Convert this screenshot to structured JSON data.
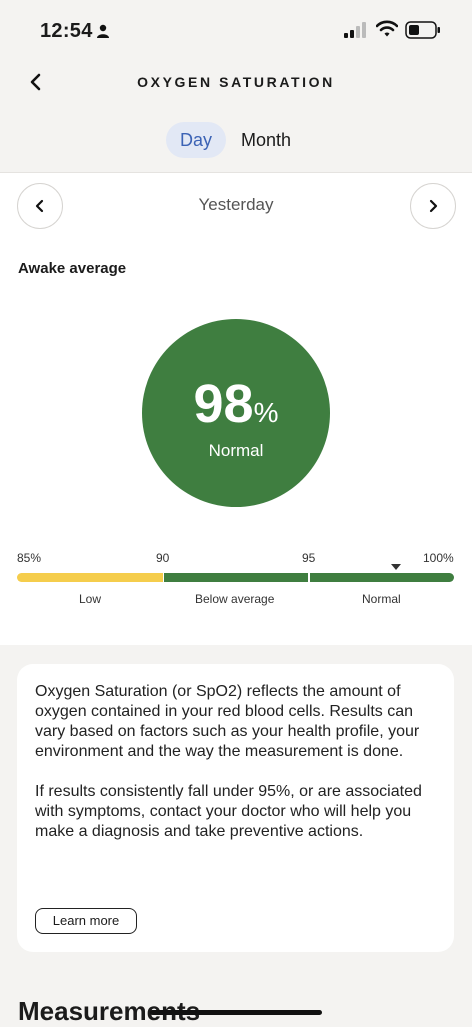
{
  "status_bar": {
    "time": "12:54"
  },
  "nav": {
    "title": "OXYGEN SATURATION"
  },
  "tabs": [
    {
      "label": "Day",
      "active": true
    },
    {
      "label": "Month",
      "active": false
    }
  ],
  "date_nav": {
    "label": "Yesterday"
  },
  "summary": {
    "section_label": "Awake average",
    "value": "98",
    "unit": "%",
    "status": "Normal",
    "status_color": "#3f7e40"
  },
  "scale": {
    "ticks": [
      "85%",
      "90",
      "95",
      "100%"
    ],
    "ranges": [
      {
        "label": "Low",
        "color": "#f5cd4c"
      },
      {
        "label": "Below average",
        "color": "#3f7e40"
      },
      {
        "label": "Normal",
        "color": "#3f7e40"
      }
    ],
    "marker_value": 98
  },
  "info": {
    "paragraph1": "Oxygen Saturation (or SpO2) reflects the amount of oxygen contained in your red blood cells. Results can vary based on factors such as your health profile, your environment and the way the measurement is done.",
    "paragraph2": "If results consistently fall under 95%, or are associated with symptoms, contact your doctor who will help you make a diagnosis and take preventive actions.",
    "learn_more_label": "Learn more"
  },
  "measurements": {
    "heading": "Measurements"
  }
}
